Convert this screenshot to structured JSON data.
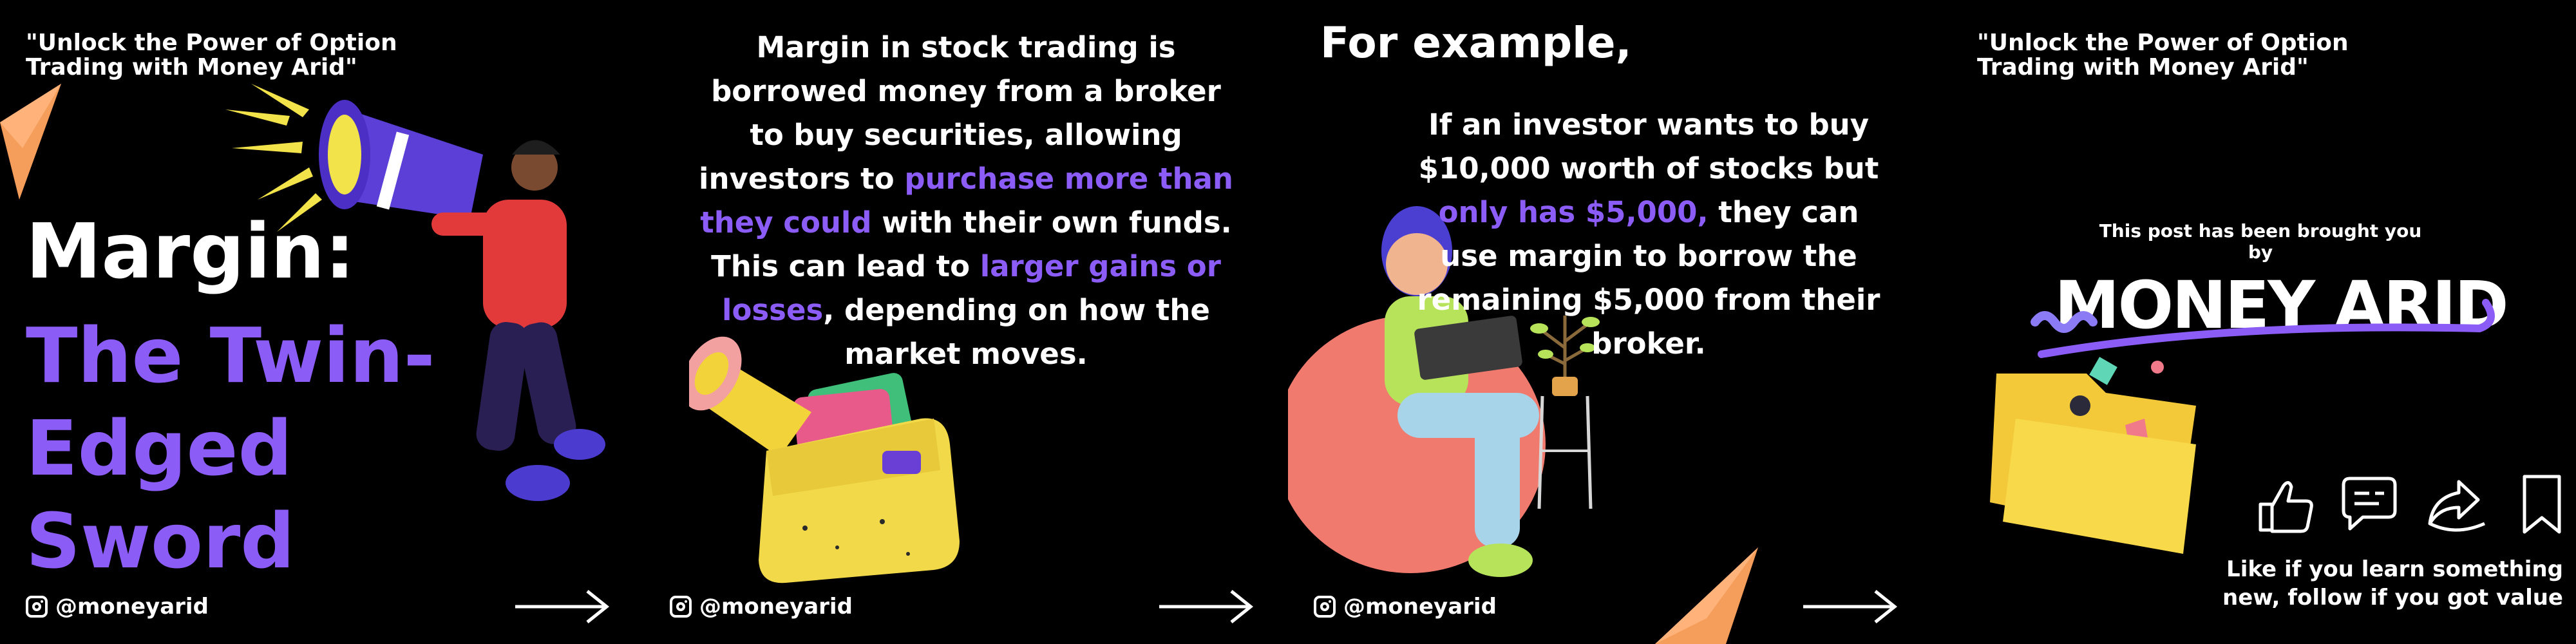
{
  "slide1": {
    "tagline_line1": "\"Unlock the Power of Option",
    "tagline_line2": "Trading with Money Arid\"",
    "title_line1": "Margin:",
    "title_line2": "The Twin-Edged",
    "title_line3": "Sword",
    "handle": "@moneyarid"
  },
  "slide2": {
    "seg1": "Margin in stock trading is borrowed money from a broker to buy securities, allowing investors to ",
    "seg2": "purchase more than they could",
    "seg3": " with their own funds. This can lead to ",
    "seg4": "larger gains or losses",
    "seg5": ", depending on how the market moves.",
    "handle": "@moneyarid"
  },
  "slide3": {
    "heading": "For example,",
    "seg1": "If an investor wants to buy $10,000 worth of stocks but ",
    "seg2": "only has $5,000,",
    "seg3": " they can use margin to borrow the remaining $5,000 from their broker.",
    "handle": "@moneyarid"
  },
  "slide4": {
    "tagline_line1": "\"Unlock the Power of Option",
    "tagline_line2": "Trading with Money Arid\"",
    "brought": "This post has been brought you by",
    "brand": "MONEY ARID",
    "cta_line1": "Like if you learn something",
    "cta_line2": "new, follow if you got value"
  },
  "colors": {
    "accent": "#8b5cf6",
    "background": "#000000",
    "text": "#ffffff"
  },
  "icons": [
    "instagram-icon",
    "arrow-right-icon",
    "thumbs-up-icon",
    "comment-icon",
    "share-icon",
    "bookmark-icon",
    "megaphone-icon"
  ]
}
